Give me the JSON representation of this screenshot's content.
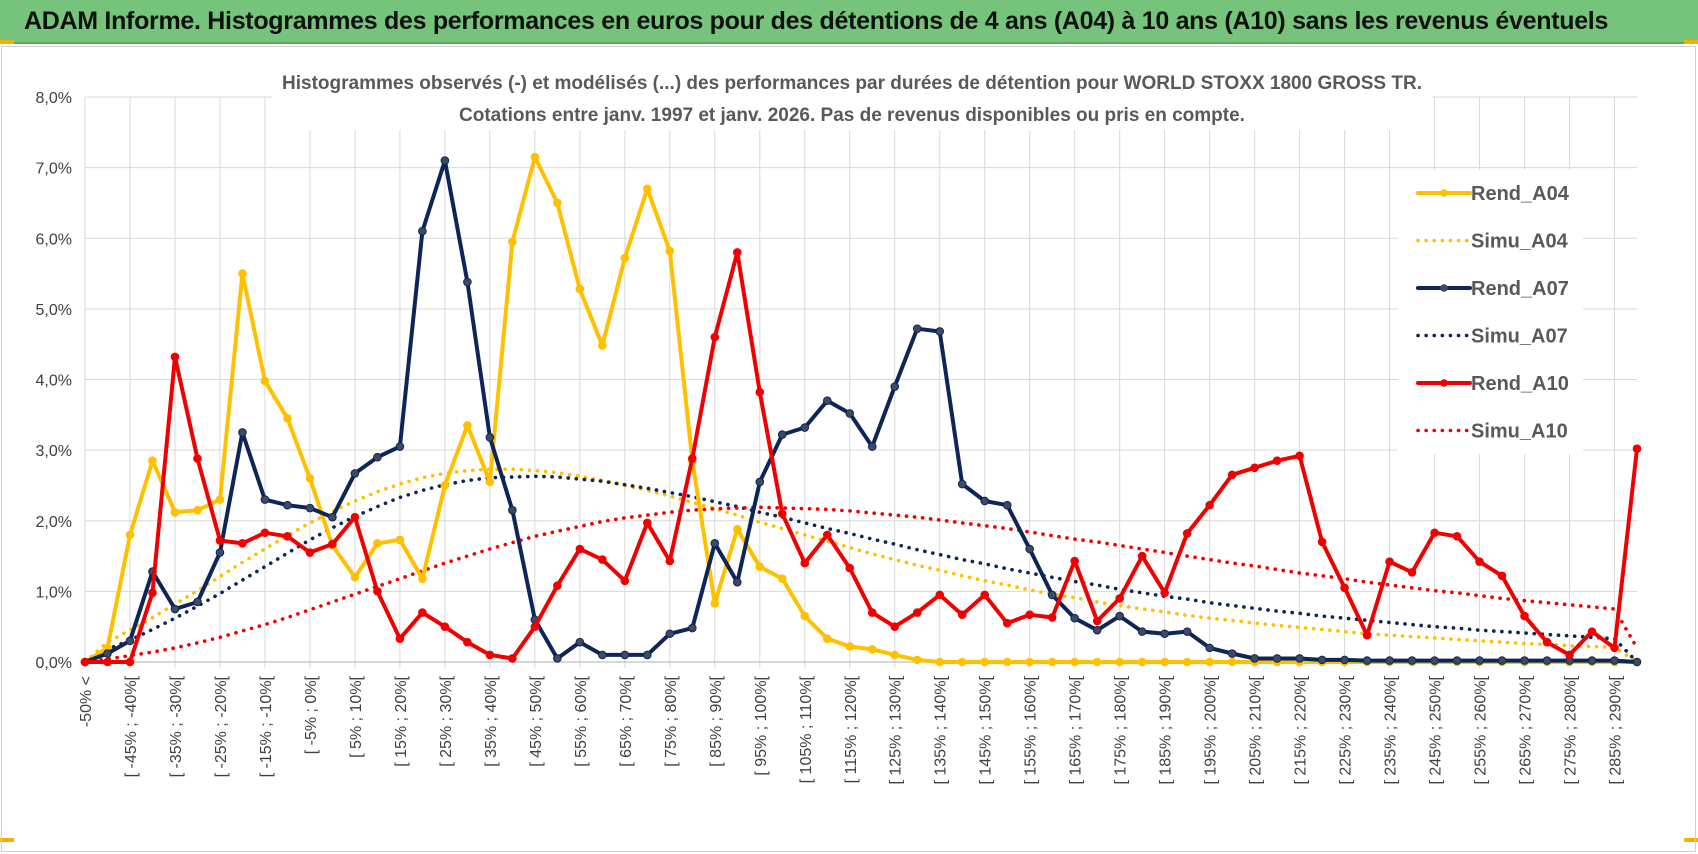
{
  "header": {
    "title": "ADAM Informe. Histogrammes des performances en euros pour des détentions de 4 ans (A04) à 10 ans (A10) sans les revenus éventuels"
  },
  "colors": {
    "banner": "#76c47b",
    "a04": "#ffc000",
    "a07": "#0e2557",
    "a10": "#f00000",
    "grid": "#d9d9d9",
    "axis_text": "#404040"
  },
  "chart_data": {
    "type": "line",
    "title_line1": "Histogrammes observés (-) et modélisés (...) des performances par durées de détention pour WORLD STOXX 1800 GROSS TR.",
    "title_line2": "Cotations entre janv. 1997 et janv. 2026. Pas de revenus disponibles ou pris en compte.",
    "ylim": [
      0,
      8
    ],
    "y_ticks": [
      0,
      1,
      2,
      3,
      4,
      5,
      6,
      7,
      8
    ],
    "y_tick_labels": [
      "0,0%",
      "1,0%",
      "2,0%",
      "3,0%",
      "4,0%",
      "5,0%",
      "6,0%",
      "7,0%",
      "8,0%"
    ],
    "x_count": 70,
    "x_labels": [
      {
        "i": 0,
        "text": "-50% <"
      },
      {
        "i": 2,
        "text": "[ -45% ; -40%["
      },
      {
        "i": 4,
        "text": "[ -35% ; -30%["
      },
      {
        "i": 6,
        "text": "[ -25% ; -20%["
      },
      {
        "i": 8,
        "text": "[ -15% ; -10%["
      },
      {
        "i": 10,
        "text": "[ -5% ; 0%["
      },
      {
        "i": 12,
        "text": "[ 5% ; 10%["
      },
      {
        "i": 14,
        "text": "[ 15% ; 20%["
      },
      {
        "i": 16,
        "text": "[ 25% ; 30%["
      },
      {
        "i": 18,
        "text": "[ 35% ; 40%["
      },
      {
        "i": 20,
        "text": "[ 45% ; 50%["
      },
      {
        "i": 22,
        "text": "[ 55% ; 60%["
      },
      {
        "i": 24,
        "text": "[ 65% ; 70%["
      },
      {
        "i": 26,
        "text": "[ 75% ; 80%["
      },
      {
        "i": 28,
        "text": "[ 85% ; 90%["
      },
      {
        "i": 30,
        "text": "[ 95% ; 100%["
      },
      {
        "i": 32,
        "text": "[ 105% ; 110%["
      },
      {
        "i": 34,
        "text": "[ 115% ; 120%["
      },
      {
        "i": 36,
        "text": "[ 125% ; 130%["
      },
      {
        "i": 38,
        "text": "[ 135% ; 140%["
      },
      {
        "i": 40,
        "text": "[ 145% ; 150%["
      },
      {
        "i": 42,
        "text": "[ 155% ; 160%["
      },
      {
        "i": 44,
        "text": "[ 165% ; 170%["
      },
      {
        "i": 46,
        "text": "[ 175% ; 180%["
      },
      {
        "i": 48,
        "text": "[ 185% ; 190%["
      },
      {
        "i": 50,
        "text": "[ 195% ; 200%["
      },
      {
        "i": 52,
        "text": "[ 205% ; 210%["
      },
      {
        "i": 54,
        "text": "[ 215% ; 220%["
      },
      {
        "i": 56,
        "text": "[ 225% ; 230%["
      },
      {
        "i": 58,
        "text": "[ 235% ; 240%["
      },
      {
        "i": 60,
        "text": "[ 245% ; 250%["
      },
      {
        "i": 62,
        "text": "[ 255% ; 260%["
      },
      {
        "i": 64,
        "text": "[ 265% ; 270%["
      },
      {
        "i": 66,
        "text": "[ 275% ; 280%["
      },
      {
        "i": 68,
        "text": "[ 285% ; 290%["
      }
    ],
    "series": [
      {
        "name": "Rend_A04",
        "style": "solid",
        "color": "#ffc000",
        "markers": true,
        "values": [
          0,
          0.2,
          1.8,
          2.85,
          2.12,
          2.15,
          2.3,
          5.5,
          3.98,
          3.45,
          2.6,
          1.65,
          1.2,
          1.68,
          1.73,
          1.18,
          2.5,
          3.35,
          2.55,
          5.95,
          7.15,
          6.5,
          5.28,
          4.48,
          5.72,
          6.7,
          5.82,
          2.85,
          0.83,
          1.88,
          1.35,
          1.18,
          0.65,
          0.33,
          0.22,
          0.18,
          0.1,
          0.03,
          0,
          0,
          0,
          0,
          0,
          0,
          0,
          0,
          0,
          0,
          0,
          0,
          0,
          0,
          0,
          0,
          0,
          0,
          0,
          0,
          0,
          0,
          0,
          0,
          0,
          0,
          0,
          0,
          0,
          0,
          0,
          0
        ]
      },
      {
        "name": "Simu_A04",
        "style": "dotted",
        "color": "#ffc000",
        "markers": false,
        "values": [
          0,
          0.28,
          0.45,
          0.63,
          0.82,
          1.01,
          1.21,
          1.41,
          1.6,
          1.79,
          1.97,
          2.13,
          2.28,
          2.41,
          2.52,
          2.61,
          2.67,
          2.71,
          2.73,
          2.73,
          2.71,
          2.68,
          2.63,
          2.57,
          2.5,
          2.43,
          2.35,
          2.26,
          2.17,
          2.08,
          1.98,
          1.89,
          1.8,
          1.71,
          1.62,
          1.53,
          1.45,
          1.37,
          1.3,
          1.22,
          1.15,
          1.09,
          1.02,
          0.96,
          0.91,
          0.85,
          0.8,
          0.75,
          0.71,
          0.66,
          0.62,
          0.59,
          0.55,
          0.52,
          0.49,
          0.46,
          0.43,
          0.4,
          0.38,
          0.36,
          0.34,
          0.32,
          0.3,
          0.28,
          0.26,
          0.25,
          0.23,
          0.22,
          0.21,
          0
        ]
      },
      {
        "name": "Rend_A07",
        "style": "solid",
        "color": "#0e2557",
        "markers": true,
        "values": [
          0,
          0.12,
          0.3,
          1.28,
          0.75,
          0.85,
          1.55,
          3.25,
          2.3,
          2.22,
          2.18,
          2.05,
          2.67,
          2.9,
          3.05,
          6.1,
          7.1,
          5.38,
          3.18,
          2.15,
          0.6,
          0.05,
          0.28,
          0.1,
          0.1,
          0.1,
          0.4,
          0.48,
          1.68,
          1.13,
          2.55,
          3.22,
          3.32,
          3.7,
          3.52,
          3.05,
          3.9,
          4.72,
          4.68,
          2.52,
          2.28,
          2.22,
          1.6,
          0.95,
          0.62,
          0.45,
          0.65,
          0.43,
          0.4,
          0.43,
          0.2,
          0.12,
          0.05,
          0.05,
          0.05,
          0.03,
          0.03,
          0.02,
          0.02,
          0.02,
          0.02,
          0.02,
          0.02,
          0.02,
          0.02,
          0.02,
          0.02,
          0.02,
          0.02,
          0
        ]
      },
      {
        "name": "Simu_A07",
        "style": "dotted",
        "color": "#0e2557",
        "markers": false,
        "values": [
          0,
          0.18,
          0.31,
          0.46,
          0.62,
          0.79,
          0.97,
          1.16,
          1.35,
          1.54,
          1.73,
          1.9,
          2.06,
          2.2,
          2.33,
          2.43,
          2.51,
          2.57,
          2.61,
          2.62,
          2.63,
          2.62,
          2.59,
          2.56,
          2.51,
          2.46,
          2.4,
          2.34,
          2.27,
          2.2,
          2.12,
          2.05,
          1.97,
          1.89,
          1.82,
          1.74,
          1.67,
          1.59,
          1.52,
          1.45,
          1.39,
          1.32,
          1.26,
          1.2,
          1.14,
          1.09,
          1.03,
          0.98,
          0.93,
          0.89,
          0.84,
          0.8,
          0.76,
          0.72,
          0.69,
          0.65,
          0.62,
          0.59,
          0.56,
          0.53,
          0.5,
          0.48,
          0.45,
          0.43,
          0.41,
          0.39,
          0.37,
          0.35,
          0.33,
          0
        ]
      },
      {
        "name": "Rend_A10",
        "style": "solid",
        "color": "#f00000",
        "markers": true,
        "values": [
          0,
          0,
          0,
          0.98,
          4.32,
          2.88,
          1.72,
          1.68,
          1.83,
          1.78,
          1.55,
          1.67,
          2.05,
          1.0,
          0.33,
          0.7,
          0.5,
          0.28,
          0.1,
          0.05,
          0.5,
          1.08,
          1.6,
          1.45,
          1.15,
          1.97,
          1.43,
          2.88,
          4.6,
          5.8,
          3.82,
          2.1,
          1.4,
          1.8,
          1.33,
          0.7,
          0.5,
          0.7,
          0.95,
          0.67,
          0.95,
          0.55,
          0.67,
          0.63,
          1.43,
          0.58,
          0.9,
          1.5,
          0.98,
          1.82,
          2.22,
          2.65,
          2.75,
          2.85,
          2.92,
          1.7,
          1.05,
          0.38,
          1.42,
          1.27,
          1.83,
          1.78,
          1.42,
          1.22,
          0.65,
          0.28,
          0.1,
          0.43,
          0.2,
          3.02
        ]
      },
      {
        "name": "Simu_A10",
        "style": "dotted",
        "color": "#f00000",
        "markers": false,
        "values": [
          0,
          0.04,
          0.09,
          0.14,
          0.2,
          0.27,
          0.35,
          0.44,
          0.53,
          0.63,
          0.74,
          0.85,
          0.96,
          1.07,
          1.18,
          1.29,
          1.4,
          1.5,
          1.6,
          1.69,
          1.78,
          1.85,
          1.92,
          1.99,
          2.04,
          2.08,
          2.12,
          2.15,
          2.17,
          2.18,
          2.19,
          2.18,
          2.17,
          2.16,
          2.14,
          2.11,
          2.08,
          2.05,
          2.01,
          1.97,
          1.93,
          1.89,
          1.84,
          1.79,
          1.74,
          1.7,
          1.65,
          1.6,
          1.55,
          1.5,
          1.45,
          1.4,
          1.36,
          1.31,
          1.26,
          1.22,
          1.18,
          1.13,
          1.09,
          1.05,
          1.01,
          0.98,
          0.94,
          0.9,
          0.87,
          0.84,
          0.81,
          0.78,
          0.75,
          0.2
        ]
      }
    ],
    "legend_position": "right"
  }
}
